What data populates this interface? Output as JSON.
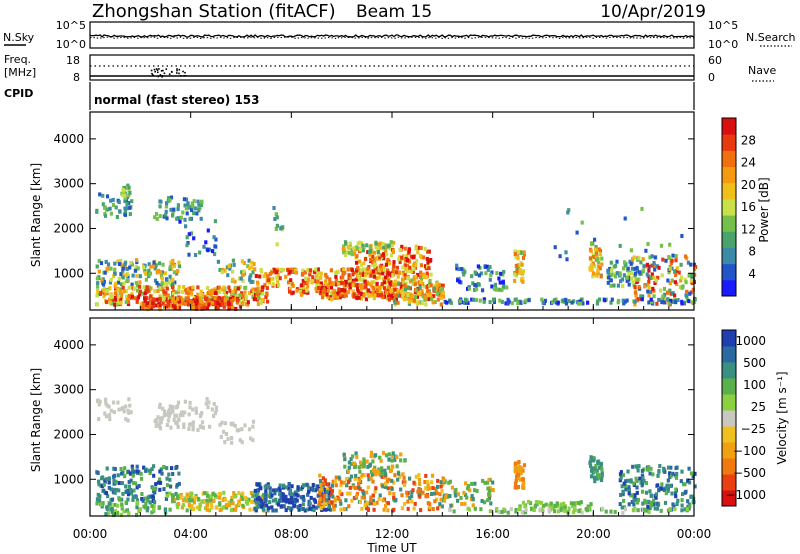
{
  "header": {
    "title": "Zhongshan Station (fitACF)",
    "beam": "Beam 15",
    "date": "10/Apr/2019"
  },
  "noise_panel": {
    "left_label": "N.Sky",
    "right_label": "N.Search",
    "left_ticks": [
      "10^5",
      "10^0"
    ],
    "right_ticks": [
      "10^5",
      "10^0"
    ]
  },
  "freq_panel": {
    "left_label_1": "Freq.",
    "left_label_2": "[MHz]",
    "left_ticks": [
      "18",
      "8"
    ],
    "right_ticks": [
      "60",
      "0"
    ],
    "right_label": "Nave"
  },
  "cpid_panel": {
    "label": "CPID",
    "text": "normal (fast stereo) 153"
  },
  "chart_data": [
    {
      "type": "heatmap",
      "parameter": "Power",
      "ylabel": "Slant Range [km]",
      "yticks": [
        "1000",
        "2000",
        "3000",
        "4000"
      ],
      "ylim": [
        180,
        4600
      ],
      "xlim_hours": [
        0,
        24
      ],
      "colorbar": {
        "label": "Power [dB]",
        "ticks": [
          "4",
          "8",
          "12",
          "16",
          "20",
          "24",
          "28"
        ],
        "colors": [
          "#1a1aff",
          "#2255c8",
          "#3a8aa8",
          "#4aa36a",
          "#74c04a",
          "#c8e04a",
          "#f0c01a",
          "#f59a10",
          "#f07010",
          "#e83a10",
          "#d81010"
        ]
      }
    },
    {
      "type": "heatmap",
      "parameter": "Velocity",
      "ylabel": "Slant Range [km]",
      "yticks": [
        "1000",
        "2000",
        "3000",
        "4000"
      ],
      "ylim": [
        180,
        4600
      ],
      "xlim_hours": [
        0,
        24
      ],
      "colorbar": {
        "label": "Velocity [m s⁻¹]",
        "ticks": [
          "1000",
          "500",
          "100",
          "25",
          "−25",
          "−100",
          "−500",
          "−1000"
        ],
        "colors": [
          "#1f3fb0",
          "#2a6aa0",
          "#3a9080",
          "#5ab04a",
          "#8ad040",
          "#c8c8c0",
          "#f0c020",
          "#f0a010",
          "#f07a10",
          "#e84010",
          "#d81010"
        ]
      }
    }
  ],
  "time_axis": {
    "label": "Time UT",
    "ticks": [
      "00:00",
      "04:00",
      "08:00",
      "12:00",
      "16:00",
      "20:00",
      "00:00"
    ]
  }
}
